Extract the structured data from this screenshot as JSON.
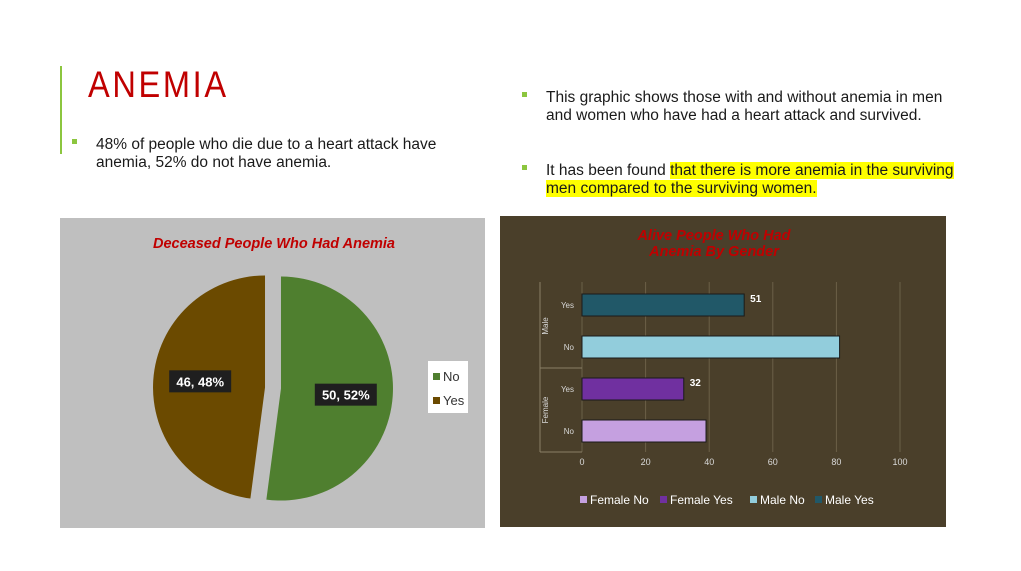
{
  "slide": {
    "title": "ANEMIA",
    "left_bullet": "48% of people who die due to a heart attack have anemia, 52% do not have anemia.",
    "right_bullets": [
      {
        "text": "This graphic shows those with and without anemia in men and women who have had a heart attack and survived."
      },
      {
        "pre": " It has been found ",
        "highlight": "that there is more anemia in the surviving men compared to the surviving women."
      }
    ]
  },
  "colors": {
    "title": "#c00000",
    "bullet_square": "#8cc63f",
    "highlight": "#ffff00",
    "pie_bg": "#bfbfbf",
    "bar_bg": "#4a3f2a",
    "female_no": "#c5a0e0",
    "female_yes": "#7030a0",
    "male_no": "#92cddc",
    "male_yes": "#215868"
  },
  "chart_data": [
    {
      "type": "pie",
      "title": "Deceased People Who Had Anemia",
      "slices": [
        {
          "label": "No",
          "value": 50,
          "percent": "52%",
          "data_label": "50, 52%",
          "color": "#4f7f2f"
        },
        {
          "label": "Yes",
          "value": 46,
          "percent": "48%",
          "data_label": "46, 48%",
          "color": "#6b4a00"
        }
      ],
      "legend": [
        "No",
        "Yes"
      ],
      "legend_position": "right"
    },
    {
      "type": "bar",
      "orientation": "horizontal",
      "title": "Alive People  Who Had Anemia By Gender",
      "groups": [
        "Male",
        "Female"
      ],
      "categories": [
        "Yes",
        "No",
        "Yes",
        "No"
      ],
      "series": [
        {
          "name": "Male Yes",
          "group": "Male",
          "category": "Yes",
          "value": 51,
          "data_label": "51",
          "color": "#215868"
        },
        {
          "name": "Male No",
          "group": "Male",
          "category": "No",
          "value": 81,
          "data_label": "",
          "color": "#92cddc"
        },
        {
          "name": "Female Yes",
          "group": "Female",
          "category": "Yes",
          "value": 32,
          "data_label": "32",
          "color": "#7030a0"
        },
        {
          "name": "Female No",
          "group": "Female",
          "category": "No",
          "value": 39,
          "data_label": "",
          "color": "#c5a0e0"
        }
      ],
      "x_ticks": [
        "0",
        "20",
        "40",
        "60",
        "80",
        "100"
      ],
      "xlim": [
        0,
        100
      ],
      "grid": true,
      "legend": [
        "Female No",
        "Female Yes",
        "Male No",
        "Male Yes"
      ],
      "legend_position": "bottom"
    }
  ]
}
